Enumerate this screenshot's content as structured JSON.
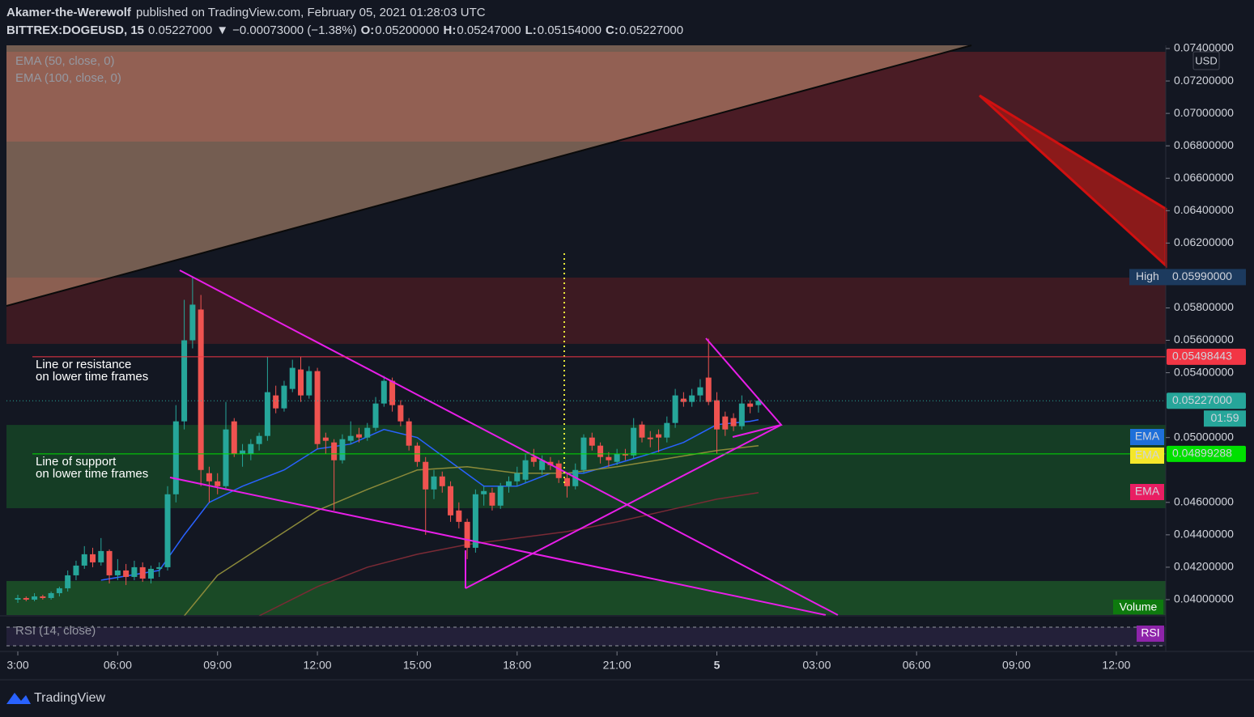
{
  "header": {
    "author": "Akamer-the-Werewolf",
    "published": "published on TradingView.com, February 05, 2021 01:28:03 UTC",
    "symbol": "BITTREX:DOGEUSD, 15",
    "last": "0.05227000",
    "arrow": "▼",
    "change": "−0.00073000 (−1.38%)",
    "o_label": "O:",
    "o": "0.05200000",
    "h_label": "H:",
    "h": "0.05247000",
    "l_label": "L:",
    "l": "0.05154000",
    "c_label": "C:",
    "c": "0.05227000"
  },
  "chart_data": {
    "type": "candlestick",
    "indicators": [
      "EMA (50, close, 0)",
      "EMA (100, close, 0)"
    ],
    "currency": "USD",
    "up_color": "#26a69a",
    "down_color": "#ef5350",
    "ylim": [
      0.0742,
      0.03905
    ],
    "yticks": [
      {
        "value": 0.074,
        "label": "0.07400000"
      },
      {
        "value": 0.072,
        "label": "0.07200000"
      },
      {
        "value": 0.07,
        "label": "0.07000000"
      },
      {
        "value": 0.068,
        "label": "0.06800000"
      },
      {
        "value": 0.066,
        "label": "0.06600000"
      },
      {
        "value": 0.064,
        "label": "0.06400000"
      },
      {
        "value": 0.062,
        "label": "0.06200000"
      },
      {
        "value": 0.058,
        "label": "0.05800000"
      },
      {
        "value": 0.056,
        "label": "0.05600000"
      },
      {
        "value": 0.054,
        "label": "0.05400000"
      },
      {
        "value": 0.05,
        "label": "0.05000000"
      },
      {
        "value": 0.046,
        "label": "0.04600000"
      },
      {
        "value": 0.044,
        "label": "0.04400000"
      },
      {
        "value": 0.042,
        "label": "0.04200000"
      },
      {
        "value": 0.04,
        "label": "0.04000000"
      }
    ],
    "xlim": [
      -2.14,
      137.94
    ],
    "xticks": [
      {
        "value": 0,
        "label": "3:00"
      },
      {
        "value": 12,
        "label": "06:00"
      },
      {
        "value": 24,
        "label": "09:00"
      },
      {
        "value": 36,
        "label": "12:00"
      },
      {
        "value": 48,
        "label": "15:00"
      },
      {
        "value": 60,
        "label": "18:00"
      },
      {
        "value": 72,
        "label": "21:00"
      },
      {
        "value": 84,
        "label": "5"
      },
      {
        "value": 96,
        "label": "03:00"
      },
      {
        "value": 108,
        "label": "06:00"
      },
      {
        "value": 120,
        "label": "09:00"
      },
      {
        "value": 132,
        "label": "12:00"
      }
    ],
    "ohlc": [
      [
        0.04,
        0.0403,
        0.0398,
        0.0401
      ],
      [
        0.0401,
        0.0402,
        0.0399,
        0.04
      ],
      [
        0.04,
        0.0404,
        0.0399,
        0.0402
      ],
      [
        0.0402,
        0.0403,
        0.04,
        0.0401
      ],
      [
        0.0401,
        0.0405,
        0.04,
        0.0404
      ],
      [
        0.0404,
        0.0408,
        0.0402,
        0.0407
      ],
      [
        0.0407,
        0.0418,
        0.0405,
        0.0415
      ],
      [
        0.0415,
        0.0424,
        0.0412,
        0.0421
      ],
      [
        0.0421,
        0.0433,
        0.0419,
        0.0428
      ],
      [
        0.0428,
        0.0432,
        0.042,
        0.0423
      ],
      [
        0.0423,
        0.0438,
        0.0421,
        0.043
      ],
      [
        0.043,
        0.0431,
        0.041,
        0.0415
      ],
      [
        0.0415,
        0.0425,
        0.0412,
        0.0418
      ],
      [
        0.0418,
        0.0422,
        0.0409,
        0.0414
      ],
      [
        0.0414,
        0.0424,
        0.0412,
        0.042
      ],
      [
        0.042,
        0.0423,
        0.0411,
        0.0413
      ],
      [
        0.0413,
        0.0421,
        0.041,
        0.0419
      ],
      [
        0.0419,
        0.0423,
        0.0414,
        0.042
      ],
      [
        0.042,
        0.047,
        0.0418,
        0.0465
      ],
      [
        0.0465,
        0.052,
        0.046,
        0.051
      ],
      [
        0.051,
        0.0585,
        0.0505,
        0.056
      ],
      [
        0.056,
        0.0599,
        0.0555,
        0.0582
      ],
      [
        0.0579,
        0.0588,
        0.047,
        0.048
      ],
      [
        0.0478,
        0.0482,
        0.046,
        0.0473
      ],
      [
        0.0473,
        0.0478,
        0.0465,
        0.047
      ],
      [
        0.047,
        0.0522,
        0.0468,
        0.0505
      ],
      [
        0.051,
        0.0512,
        0.0488,
        0.049
      ],
      [
        0.049,
        0.0496,
        0.0482,
        0.0492
      ],
      [
        0.049,
        0.0499,
        0.0486,
        0.0496
      ],
      [
        0.0496,
        0.0503,
        0.0492,
        0.0501
      ],
      [
        0.0501,
        0.055,
        0.0498,
        0.0528
      ],
      [
        0.0526,
        0.0532,
        0.0515,
        0.0518
      ],
      [
        0.0518,
        0.0535,
        0.0516,
        0.0532
      ],
      [
        0.053,
        0.0548,
        0.0528,
        0.0543
      ],
      [
        0.0542,
        0.055,
        0.0522,
        0.0526
      ],
      [
        0.0526,
        0.0544,
        0.0524,
        0.0541
      ],
      [
        0.0541,
        0.0543,
        0.0493,
        0.0496
      ],
      [
        0.05,
        0.0503,
        0.049,
        0.0498
      ],
      [
        0.0497,
        0.0499,
        0.0455,
        0.0486
      ],
      [
        0.0486,
        0.0502,
        0.0484,
        0.0499
      ],
      [
        0.0498,
        0.051,
        0.0496,
        0.0501
      ],
      [
        0.0502,
        0.0506,
        0.0497,
        0.05
      ],
      [
        0.05,
        0.0509,
        0.0498,
        0.0506
      ],
      [
        0.0506,
        0.0525,
        0.0504,
        0.0521
      ],
      [
        0.0521,
        0.0538,
        0.0519,
        0.0535
      ],
      [
        0.0535,
        0.0537,
        0.0516,
        0.052
      ],
      [
        0.052,
        0.0523,
        0.0507,
        0.051
      ],
      [
        0.051,
        0.0512,
        0.0492,
        0.0495
      ],
      [
        0.0495,
        0.0497,
        0.0482,
        0.0485
      ],
      [
        0.0485,
        0.0488,
        0.044,
        0.0468
      ],
      [
        0.0468,
        0.048,
        0.0462,
        0.0476
      ],
      [
        0.0476,
        0.0479,
        0.0466,
        0.047
      ],
      [
        0.047,
        0.0473,
        0.0448,
        0.0452
      ],
      [
        0.0455,
        0.046,
        0.0444,
        0.0448
      ],
      [
        0.0448,
        0.045,
        0.0425,
        0.0432
      ],
      [
        0.0432,
        0.0468,
        0.0429,
        0.0465
      ],
      [
        0.0465,
        0.047,
        0.0458,
        0.0467
      ],
      [
        0.0466,
        0.0469,
        0.0455,
        0.0458
      ],
      [
        0.0458,
        0.0472,
        0.0456,
        0.047
      ],
      [
        0.047,
        0.0476,
        0.0466,
        0.0473
      ],
      [
        0.0473,
        0.0482,
        0.047,
        0.0478
      ],
      [
        0.0474,
        0.049,
        0.0472,
        0.0486
      ],
      [
        0.0488,
        0.0493,
        0.0482,
        0.0485
      ],
      [
        0.048,
        0.0489,
        0.0477,
        0.0486
      ],
      [
        0.0485,
        0.0488,
        0.048,
        0.0483
      ],
      [
        0.0484,
        0.0486,
        0.0472,
        0.0475
      ],
      [
        0.0475,
        0.0478,
        0.0463,
        0.047
      ],
      [
        0.047,
        0.0484,
        0.0468,
        0.048
      ],
      [
        0.048,
        0.0502,
        0.0478,
        0.05
      ],
      [
        0.05,
        0.0503,
        0.0492,
        0.0495
      ],
      [
        0.0495,
        0.0497,
        0.0484,
        0.0488
      ],
      [
        0.0488,
        0.0491,
        0.0482,
        0.0486
      ],
      [
        0.0485,
        0.0493,
        0.0483,
        0.049
      ],
      [
        0.049,
        0.0493,
        0.0486,
        0.0489
      ],
      [
        0.0489,
        0.0512,
        0.0487,
        0.0506
      ],
      [
        0.0508,
        0.051,
        0.0497,
        0.05
      ],
      [
        0.05,
        0.0504,
        0.0494,
        0.0499
      ],
      [
        0.0502,
        0.0505,
        0.0491,
        0.05
      ],
      [
        0.05,
        0.0513,
        0.0497,
        0.0509
      ],
      [
        0.0509,
        0.053,
        0.0506,
        0.0526
      ],
      [
        0.0524,
        0.0528,
        0.0519,
        0.0522
      ],
      [
        0.0522,
        0.053,
        0.0519,
        0.0526
      ],
      [
        0.0526,
        0.0536,
        0.0522,
        0.0531
      ],
      [
        0.0537,
        0.0561,
        0.052,
        0.0522
      ],
      [
        0.0523,
        0.0528,
        0.049,
        0.0505
      ],
      [
        0.0513,
        0.0516,
        0.0501,
        0.0505
      ],
      [
        0.0512,
        0.0515,
        0.0504,
        0.0507
      ],
      [
        0.0507,
        0.0526,
        0.0505,
        0.0521
      ],
      [
        0.0521,
        0.0523,
        0.0515,
        0.0519
      ],
      [
        0.052,
        0.05247,
        0.05154,
        0.05227
      ]
    ],
    "ema": [
      {
        "color": "#2962ff",
        "x": [
          10,
          17,
          20,
          23,
          27,
          32,
          36,
          40,
          44,
          48,
          52,
          56,
          60,
          64,
          68,
          72,
          76,
          80,
          84,
          88,
          89
        ],
        "values": [
          0.0412,
          0.0418,
          0.044,
          0.046,
          0.047,
          0.048,
          0.0493,
          0.0496,
          0.0505,
          0.05,
          0.0485,
          0.047,
          0.047,
          0.0478,
          0.0478,
          0.0484,
          0.049,
          0.0497,
          0.0508,
          0.051,
          0.0511
        ]
      },
      {
        "color": "#8c8a3a",
        "x": [
          20,
          24,
          30,
          36,
          42,
          48,
          54,
          60,
          66,
          72,
          78,
          84,
          89
        ],
        "values": [
          0.039,
          0.0415,
          0.0435,
          0.0455,
          0.0468,
          0.048,
          0.0482,
          0.0478,
          0.0478,
          0.0482,
          0.0487,
          0.0492,
          0.0495
        ]
      },
      {
        "color": "#7a2a35",
        "x": [
          29,
          36,
          42,
          48,
          54,
          60,
          66,
          72,
          78,
          84,
          89
        ],
        "values": [
          0.039,
          0.0408,
          0.042,
          0.0428,
          0.0434,
          0.0438,
          0.0442,
          0.0448,
          0.0455,
          0.0462,
          0.0466
        ]
      }
    ],
    "zones": [
      {
        "top": 0.0738,
        "bottom": 0.06826,
        "color": "#4a1c25"
      },
      {
        "top": 0.05987,
        "bottom": 0.05578,
        "color": "#3d1a22"
      },
      {
        "top": 0.05078,
        "bottom": 0.04564,
        "color": "#153d25"
      },
      {
        "top": 0.04115,
        "bottom": 0.03905,
        "color": "#1a4a26"
      }
    ],
    "high": {
      "name": "High",
      "value": 0.0599,
      "label": "0.05990000"
    },
    "levels": [
      {
        "value": 0.05498443,
        "label": "0.05498443",
        "color": "#f23645",
        "text_color": "#ffffff"
      },
      {
        "value": 0.05227,
        "label": "0.05227000",
        "color": "#26a69a",
        "text_color": "#ffffff"
      },
      {
        "value": 0.04899288,
        "label": "0.04899288",
        "color": "#00e000",
        "text_color": "#000000"
      }
    ],
    "countdown": "01:59",
    "ema_tags": [
      {
        "label": "EMA",
        "color": "#1e6fd9",
        "text_color": "#ffffff"
      },
      {
        "label": "EMA",
        "color": "#f5e72a",
        "text_color": "#000000"
      },
      {
        "label": "EMA",
        "color": "#e91e63",
        "text_color": "#ffffff"
      }
    ],
    "annotations": [
      [
        "Line or resistance",
        "on lower time frames"
      ],
      [
        "Line of support",
        "on lower time frames"
      ]
    ],
    "volume_label": "Volume",
    "rsi_label": "RSI (14, close)",
    "rsi_tag": "RSI"
  },
  "footer": {
    "brand": "TradingView"
  }
}
